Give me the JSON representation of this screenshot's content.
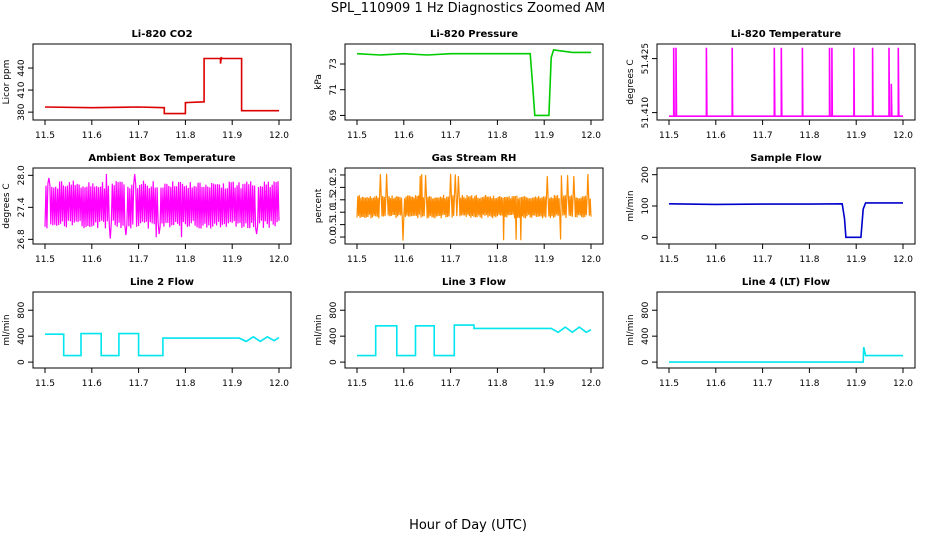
{
  "page": {
    "title": "SPL_110909  1 Hz Diagnostics Zoomed AM",
    "xlabel": "Hour of Day (UTC)"
  },
  "chart_data": [
    {
      "type": "line",
      "title": "Li-820 CO2",
      "ylabel": "Licor ppm",
      "color": "#dd0000",
      "xlim": [
        11.5,
        12.0
      ],
      "ylim": [
        372,
        470
      ],
      "xticks": [
        "11.5",
        "11.6",
        "11.7",
        "11.8",
        "11.9",
        "12.0"
      ],
      "yticks": [
        {
          "v": 380,
          "label": "380"
        },
        {
          "v": 410,
          "label": "410"
        },
        {
          "v": 440,
          "label": "440"
        }
      ],
      "series": [
        {
          "x": [
            11.5,
            11.6,
            11.7,
            11.755,
            11.755,
            11.8,
            11.8,
            11.84,
            11.84,
            11.875,
            11.875,
            11.877,
            11.877,
            11.92,
            11.92,
            12.0
          ],
          "y": [
            387,
            386,
            387,
            386,
            378,
            378,
            393,
            394,
            453,
            453,
            446,
            455,
            453,
            453,
            382,
            382
          ]
        }
      ]
    },
    {
      "type": "line",
      "title": "Li-820 Pressure",
      "ylabel": "kPa",
      "color": "#00cc00",
      "xlim": [
        11.5,
        12.0
      ],
      "ylim": [
        68.8,
        74.4
      ],
      "xticks": [
        "11.5",
        "11.6",
        "11.7",
        "11.8",
        "11.9",
        "12.0"
      ],
      "yticks": [
        {
          "v": 69,
          "label": "69"
        },
        {
          "v": 71,
          "label": "71"
        },
        {
          "v": 73,
          "label": "73"
        }
      ],
      "series": [
        {
          "x": [
            11.5,
            11.55,
            11.6,
            11.65,
            11.7,
            11.75,
            11.8,
            11.87,
            11.875,
            11.88,
            11.91,
            11.915,
            11.92,
            11.96,
            12.0
          ],
          "y": [
            73.8,
            73.7,
            73.8,
            73.7,
            73.8,
            73.8,
            73.8,
            73.8,
            71.5,
            69.0,
            69.0,
            73.5,
            74.1,
            73.9,
            73.9
          ]
        }
      ]
    },
    {
      "type": "line",
      "title": "Li-820 Temperature",
      "ylabel": "degrees C",
      "color": "#ff00ff",
      "xlim": [
        11.5,
        12.0
      ],
      "ylim": [
        51.4085,
        51.4285
      ],
      "xticks": [
        "11.5",
        "11.6",
        "11.7",
        "11.8",
        "11.9",
        "12.0"
      ],
      "yticks": [
        {
          "v": 51.41,
          "label": "51.410"
        },
        {
          "v": 51.425,
          "label": "51.425"
        }
      ],
      "series": [
        {
          "x": [
            11.5,
            11.51,
            11.51,
            11.511,
            11.515,
            11.515,
            11.516,
            11.58,
            11.58,
            11.581,
            11.635,
            11.635,
            11.636,
            11.725,
            11.725,
            11.726,
            11.74,
            11.74,
            11.741,
            11.785,
            11.785,
            11.786,
            11.843,
            11.843,
            11.844,
            11.848,
            11.848,
            11.849,
            11.895,
            11.895,
            11.896,
            11.935,
            11.935,
            11.936,
            11.97,
            11.97,
            11.971,
            11.975,
            11.975,
            11.976,
            11.99,
            11.99,
            11.991,
            12.0
          ],
          "y": [
            51.409,
            51.409,
            51.428,
            51.409,
            51.409,
            51.428,
            51.409,
            51.409,
            51.428,
            51.409,
            51.409,
            51.428,
            51.409,
            51.409,
            51.428,
            51.409,
            51.409,
            51.428,
            51.409,
            51.409,
            51.428,
            51.409,
            51.409,
            51.428,
            51.409,
            51.409,
            51.428,
            51.409,
            51.409,
            51.428,
            51.409,
            51.409,
            51.428,
            51.409,
            51.409,
            51.428,
            51.409,
            51.409,
            51.418,
            51.409,
            51.409,
            51.428,
            51.409,
            51.409
          ]
        }
      ]
    },
    {
      "type": "line",
      "title": "Ambient Box Temperature",
      "ylabel": "degrees C",
      "color": "#ff00ff",
      "xlim": [
        11.5,
        12.0
      ],
      "ylim": [
        26.75,
        28.1
      ],
      "xticks": [
        "11.5",
        "11.6",
        "11.7",
        "11.8",
        "11.9",
        "12.0"
      ],
      "yticks": [
        {
          "v": 26.8,
          "label": "26.8"
        },
        {
          "v": 27.4,
          "label": "27.4"
        },
        {
          "v": 28.0,
          "label": "28.0"
        }
      ],
      "noise": {
        "n": 240,
        "lo": 27.0,
        "hi": 27.9,
        "spikes_lo": 26.8,
        "spikes_hi": 28.05,
        "seed": 7
      },
      "series": [
        {
          "x": [
            11.5,
            12.0
          ],
          "y": [
            27.4,
            27.4
          ]
        }
      ]
    },
    {
      "type": "line",
      "title": "Gas Stream RH",
      "ylabel": "percent",
      "color": "#ff8c00",
      "xlim": [
        11.5,
        12.0
      ],
      "ylim": [
        -0.2,
        2.7
      ],
      "xticks": [
        "11.5",
        "11.6",
        "11.7",
        "11.8",
        "11.9",
        "12.0"
      ],
      "yticks": [
        {
          "v": 0.0,
          "label": "0.0"
        },
        {
          "v": 0.5,
          "label": "0.5"
        },
        {
          "v": 1.0,
          "label": "1.0"
        },
        {
          "v": 1.5,
          "label": "1.5"
        },
        {
          "v": 2.0,
          "label": "2.0"
        },
        {
          "v": 2.5,
          "label": "2.5"
        }
      ],
      "noise": {
        "n": 300,
        "lo": 0.75,
        "hi": 1.7,
        "spikes_lo": -0.15,
        "spikes_hi": 2.55,
        "seed": 11
      },
      "series": [
        {
          "x": [
            11.5,
            12.0
          ],
          "y": [
            1.2,
            1.2
          ]
        }
      ]
    },
    {
      "type": "line",
      "title": "Sample Flow",
      "ylabel": "ml/min",
      "color": "#0000cc",
      "xlim": [
        11.5,
        12.0
      ],
      "ylim": [
        -15,
        215
      ],
      "xticks": [
        "11.5",
        "11.6",
        "11.7",
        "11.8",
        "11.9",
        "12.0"
      ],
      "yticks": [
        {
          "v": 0,
          "label": "0"
        },
        {
          "v": 100,
          "label": "100"
        },
        {
          "v": 200,
          "label": "200"
        }
      ],
      "series": [
        {
          "x": [
            11.5,
            11.6,
            11.7,
            11.8,
            11.87,
            11.875,
            11.878,
            11.91,
            11.915,
            11.92,
            12.0
          ],
          "y": [
            107,
            105,
            106,
            106,
            107,
            60,
            0,
            0,
            90,
            110,
            110
          ]
        }
      ]
    },
    {
      "type": "line",
      "title": "Line 2 Flow",
      "ylabel": "ml/min",
      "color": "#00e5ee",
      "xlim": [
        11.5,
        12.0
      ],
      "ylim": [
        -60,
        1050
      ],
      "xticks": [
        "11.5",
        "11.6",
        "11.7",
        "11.8",
        "11.9",
        "12.0"
      ],
      "yticks": [
        {
          "v": 0,
          "label": "0"
        },
        {
          "v": 400,
          "label": "400"
        },
        {
          "v": 800,
          "label": "800"
        }
      ],
      "series": [
        {
          "x": [
            11.5,
            11.54,
            11.54,
            11.577,
            11.577,
            11.62,
            11.62,
            11.658,
            11.658,
            11.7,
            11.7,
            11.742,
            11.742,
            11.752,
            11.752,
            11.915,
            11.93,
            11.945,
            11.96,
            11.975,
            11.99,
            12.0
          ],
          "y": [
            430,
            430,
            100,
            100,
            440,
            440,
            100,
            100,
            440,
            440,
            100,
            100,
            100,
            100,
            370,
            370,
            320,
            390,
            320,
            390,
            330,
            380
          ]
        }
      ]
    },
    {
      "type": "line",
      "title": "Line 3 Flow",
      "ylabel": "ml/min",
      "color": "#00e5ee",
      "xlim": [
        11.5,
        12.0
      ],
      "ylim": [
        -60,
        1050
      ],
      "xticks": [
        "11.5",
        "11.6",
        "11.7",
        "11.8",
        "11.9",
        "12.0"
      ],
      "yticks": [
        {
          "v": 0,
          "label": "0"
        },
        {
          "v": 400,
          "label": "400"
        },
        {
          "v": 800,
          "label": "800"
        }
      ],
      "series": [
        {
          "x": [
            11.5,
            11.54,
            11.54,
            11.585,
            11.585,
            11.625,
            11.625,
            11.665,
            11.665,
            11.708,
            11.708,
            11.75,
            11.75,
            11.915,
            11.93,
            11.945,
            11.96,
            11.975,
            11.99,
            12.0
          ],
          "y": [
            100,
            100,
            560,
            560,
            100,
            100,
            560,
            560,
            100,
            100,
            570,
            570,
            520,
            520,
            460,
            540,
            460,
            540,
            460,
            500
          ]
        }
      ]
    },
    {
      "type": "line",
      "title": "Line 4 (LT) Flow",
      "ylabel": "ml/min",
      "color": "#00e5ee",
      "xlim": [
        11.5,
        12.0
      ],
      "ylim": [
        -60,
        1050
      ],
      "xticks": [
        "11.5",
        "11.6",
        "11.7",
        "11.8",
        "11.9",
        "12.0"
      ],
      "yticks": [
        {
          "v": 0,
          "label": "0"
        },
        {
          "v": 400,
          "label": "400"
        },
        {
          "v": 800,
          "label": "800"
        }
      ],
      "series": [
        {
          "x": [
            11.5,
            11.915,
            11.916,
            11.92,
            12.0
          ],
          "y": [
            0,
            0,
            230,
            100,
            100
          ]
        }
      ]
    }
  ]
}
